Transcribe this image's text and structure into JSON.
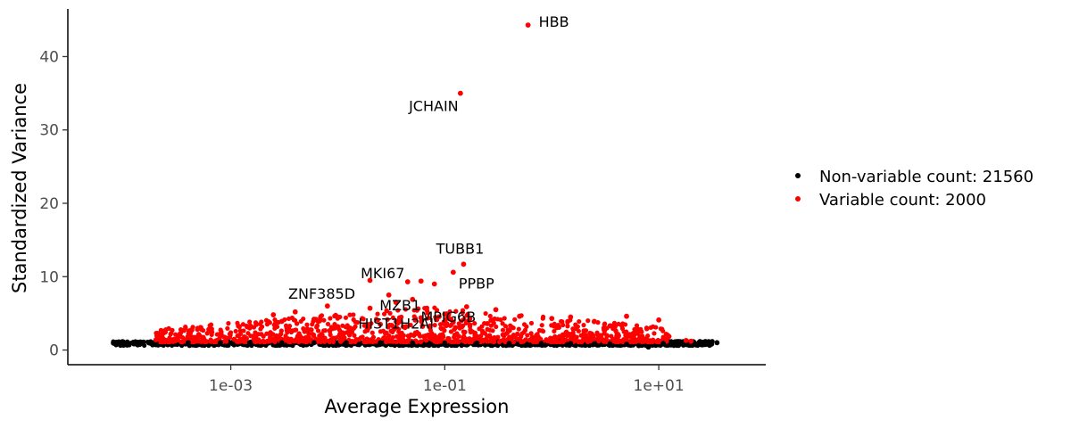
{
  "chart_data": {
    "type": "scatter",
    "xlabel": "Average Expression",
    "ylabel": "Standardized Variance",
    "x_scale": "log10",
    "xlim": [
      3e-05,
      100
    ],
    "ylim": [
      -2,
      46.5
    ],
    "x_ticks": [
      {
        "value": 0.001,
        "label": "1e-03"
      },
      {
        "value": 0.1,
        "label": "1e-01"
      },
      {
        "value": 10,
        "label": "1e+01"
      }
    ],
    "y_ticks": [
      {
        "value": 0,
        "label": "0"
      },
      {
        "value": 10,
        "label": "10"
      },
      {
        "value": 20,
        "label": "20"
      },
      {
        "value": 30,
        "label": "30"
      },
      {
        "value": 40,
        "label": "40"
      }
    ],
    "grid": false,
    "legend_position": "right",
    "series": [
      {
        "name": "Non-variable count: 21560",
        "color": "#000000",
        "x": [
          8e-05,
          0.00013,
          0.0002,
          0.0004,
          0.0008,
          0.0015,
          0.003,
          0.006,
          0.012,
          0.025,
          0.05,
          0.1,
          0.2,
          0.4,
          0.8,
          1.5,
          2.5,
          3.5,
          5,
          6.5,
          8,
          11,
          17,
          35
        ],
        "y": [
          0.95,
          1.0,
          1.0,
          1.0,
          1.0,
          1.0,
          1.0,
          1.0,
          1.0,
          1.0,
          0.95,
          0.95,
          0.95,
          0.9,
          0.9,
          0.9,
          0.85,
          0.85,
          0.8,
          0.6,
          0.4,
          0.9,
          1.0,
          1.0
        ]
      },
      {
        "name": "Variable count: 2000",
        "color": "#ff0000",
        "x": [
          0.6,
          0.14,
          0.15,
          0.12,
          0.06,
          0.045,
          0.02,
          0.03,
          0.05,
          0.08,
          0.1,
          0.0025,
          0.004,
          0.006,
          0.008,
          0.02,
          0.035,
          0.16,
          0.3,
          0.5,
          1.0,
          0.0002,
          0.0004,
          0.0008,
          0.0015,
          0.003,
          0.01,
          0.025,
          0.06,
          0.12,
          0.25,
          1.5,
          2.5,
          3.5,
          5,
          10,
          18,
          20,
          2.0,
          0.0012
        ],
        "y": [
          44.3,
          35.0,
          11.7,
          10.6,
          9.4,
          9.3,
          9.5,
          7.5,
          6.9,
          9.0,
          4.9,
          4.8,
          5.2,
          4.2,
          6.0,
          5.7,
          6.5,
          5.9,
          5.5,
          4.6,
          4.3,
          1.4,
          1.7,
          2.2,
          3.0,
          3.9,
          3.2,
          3.5,
          4.4,
          3.8,
          3.6,
          4.5,
          3.9,
          3.3,
          4.6,
          4.1,
          1.3,
          1.2,
          2.6,
          3.2
        ]
      }
    ],
    "annotations": [
      {
        "text": "HBB",
        "x": 0.6,
        "y": 44.3
      },
      {
        "text": "JCHAIN",
        "x": 0.14,
        "y": 35.0
      },
      {
        "text": "TUBB1",
        "x": 0.15,
        "y": 11.7
      },
      {
        "text": "PPBP",
        "x": 0.12,
        "y": 10.6
      },
      {
        "text": "MKI67",
        "x": 0.045,
        "y": 9.3
      },
      {
        "text": "ZNF385D",
        "x": 0.02,
        "y": 7.7
      },
      {
        "text": "MZB1",
        "x": 0.05,
        "y": 6.9
      },
      {
        "text": "HIST1H2AI",
        "x": 0.035,
        "y": 4.6
      },
      {
        "text": "MPIG6B",
        "x": 0.1,
        "y": 4.9
      }
    ]
  }
}
